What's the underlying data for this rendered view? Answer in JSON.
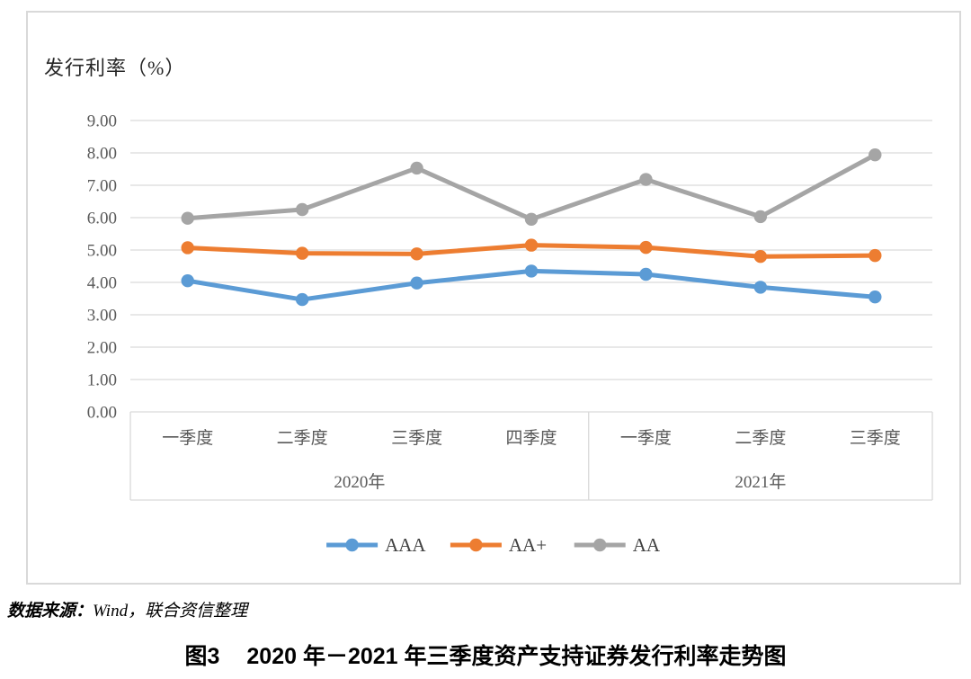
{
  "chart": {
    "y_axis_title": "发行利率（%）",
    "colors": {
      "aaa": "#5B9BD5",
      "aa_plus": "#ED7D31",
      "aa": "#A5A5A5",
      "gridline": "#D9D9D9",
      "axis_text": "#595959",
      "border": "#D9D9D9"
    }
  },
  "chart_data": {
    "type": "line",
    "title": "发行利率（%）",
    "categories": [
      "一季度",
      "二季度",
      "三季度",
      "四季度",
      "一季度",
      "二季度",
      "三季度"
    ],
    "category_groups": [
      {
        "label": "2020年",
        "span": 4
      },
      {
        "label": "2021年",
        "span": 3
      }
    ],
    "series": [
      {
        "name": "AAA",
        "color": "#5B9BD5",
        "values": [
          4.05,
          3.47,
          3.98,
          4.35,
          4.25,
          3.85,
          3.55
        ]
      },
      {
        "name": "AA+",
        "color": "#ED7D31",
        "values": [
          5.07,
          4.9,
          4.88,
          5.15,
          5.08,
          4.8,
          4.83
        ]
      },
      {
        "name": "AA",
        "color": "#A5A5A5",
        "values": [
          5.98,
          6.25,
          7.53,
          5.95,
          7.18,
          6.03,
          7.94
        ]
      }
    ],
    "xlabel": "",
    "ylabel": "发行利率（%）",
    "ylim": [
      0,
      9
    ],
    "ytick_step": 1,
    "ytick_decimals": 2,
    "grid": true,
    "legend_position": "bottom"
  },
  "source_note": {
    "label": "数据来源：",
    "text": "Wind，联合资信整理"
  },
  "caption": {
    "number": "图3",
    "title": "2020 年－2021 年三季度资产支持证券发行利率走势图"
  }
}
